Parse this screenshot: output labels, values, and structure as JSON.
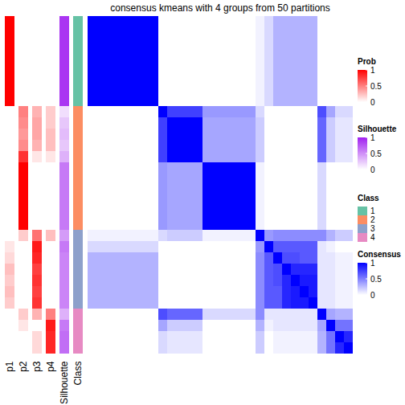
{
  "chart_data": {
    "type": "heatmap",
    "title": "consensus kmeans with 4 groups from 50 partitions",
    "consensus": {
      "title": "Consensus",
      "range": [
        0,
        1
      ],
      "ticks": [
        0,
        0.5,
        1
      ],
      "colors": [
        "#FFFFFF",
        "#0000FF"
      ],
      "cells": [
        [
          1,
          1,
          1,
          1,
          1,
          1,
          1,
          1,
          0,
          0,
          0,
          0,
          0,
          0,
          0,
          0,
          0,
          0,
          0,
          0.05,
          0.15,
          0.3,
          0.3,
          0.3,
          0.3,
          0.3,
          0,
          0,
          0,
          0
        ],
        [
          1,
          1,
          1,
          1,
          1,
          1,
          1,
          1,
          0,
          0,
          0,
          0,
          0,
          0,
          0,
          0,
          0,
          0,
          0,
          0.05,
          0.15,
          0.3,
          0.3,
          0.3,
          0.3,
          0.3,
          0,
          0,
          0,
          0
        ],
        [
          1,
          1,
          1,
          1,
          1,
          1,
          1,
          1,
          0,
          0,
          0,
          0,
          0,
          0,
          0,
          0,
          0,
          0,
          0,
          0.05,
          0.15,
          0.3,
          0.3,
          0.3,
          0.3,
          0.3,
          0,
          0,
          0,
          0
        ],
        [
          1,
          1,
          1,
          1,
          1,
          1,
          1,
          1,
          0,
          0,
          0,
          0,
          0,
          0,
          0,
          0,
          0,
          0,
          0,
          0.05,
          0.15,
          0.3,
          0.3,
          0.3,
          0.3,
          0.3,
          0,
          0,
          0,
          0
        ],
        [
          1,
          1,
          1,
          1,
          1,
          1,
          1,
          1,
          0,
          0,
          0,
          0,
          0,
          0,
          0,
          0,
          0,
          0,
          0,
          0.05,
          0.15,
          0.3,
          0.3,
          0.3,
          0.3,
          0.3,
          0,
          0,
          0,
          0
        ],
        [
          1,
          1,
          1,
          1,
          1,
          1,
          1,
          1,
          0,
          0,
          0,
          0,
          0,
          0,
          0,
          0,
          0,
          0,
          0,
          0.05,
          0.15,
          0.3,
          0.3,
          0.3,
          0.3,
          0.3,
          0,
          0,
          0,
          0
        ],
        [
          1,
          1,
          1,
          1,
          1,
          1,
          1,
          1,
          0,
          0,
          0,
          0,
          0,
          0,
          0,
          0,
          0,
          0,
          0,
          0.05,
          0.15,
          0.3,
          0.3,
          0.3,
          0.3,
          0.3,
          0,
          0,
          0,
          0
        ],
        [
          1,
          1,
          1,
          1,
          1,
          1,
          1,
          1,
          0,
          0,
          0,
          0,
          0,
          0,
          0,
          0,
          0,
          0,
          0,
          0.05,
          0.15,
          0.3,
          0.3,
          0.3,
          0.3,
          0.3,
          0,
          0,
          0,
          0
        ],
        [
          0,
          0,
          0,
          0,
          0,
          0,
          0,
          0,
          1,
          0.75,
          0.75,
          0.75,
          0.75,
          0.4,
          0.4,
          0.4,
          0.4,
          0.4,
          0.4,
          0.15,
          0,
          0,
          0,
          0,
          0,
          0,
          0.7,
          0.35,
          0.15,
          0.15
        ],
        [
          0,
          0,
          0,
          0,
          0,
          0,
          0,
          0,
          0.75,
          1,
          1,
          1,
          1,
          0.35,
          0.35,
          0.35,
          0.35,
          0.35,
          0.35,
          0.2,
          0,
          0,
          0,
          0,
          0,
          0,
          0.6,
          0.2,
          0.1,
          0.1
        ],
        [
          0,
          0,
          0,
          0,
          0,
          0,
          0,
          0,
          0.75,
          1,
          1,
          1,
          1,
          0.35,
          0.35,
          0.35,
          0.35,
          0.35,
          0.35,
          0.2,
          0,
          0,
          0,
          0,
          0,
          0,
          0.6,
          0.2,
          0.1,
          0.1
        ],
        [
          0,
          0,
          0,
          0,
          0,
          0,
          0,
          0,
          0.75,
          1,
          1,
          1,
          1,
          0.35,
          0.35,
          0.35,
          0.35,
          0.35,
          0.35,
          0.2,
          0,
          0,
          0,
          0,
          0,
          0,
          0.6,
          0.2,
          0.1,
          0.1
        ],
        [
          0,
          0,
          0,
          0,
          0,
          0,
          0,
          0,
          0.75,
          1,
          1,
          1,
          1,
          0.35,
          0.35,
          0.35,
          0.35,
          0.35,
          0.35,
          0.2,
          0,
          0,
          0,
          0,
          0,
          0,
          0.6,
          0.2,
          0.1,
          0.1
        ],
        [
          0,
          0,
          0,
          0,
          0,
          0,
          0,
          0,
          0.4,
          0.35,
          0.35,
          0.35,
          0.35,
          1,
          1,
          1,
          1,
          1,
          1,
          0.05,
          0,
          0,
          0,
          0,
          0,
          0,
          0.15,
          0,
          0,
          0
        ],
        [
          0,
          0,
          0,
          0,
          0,
          0,
          0,
          0,
          0.4,
          0.35,
          0.35,
          0.35,
          0.35,
          1,
          1,
          1,
          1,
          1,
          1,
          0.05,
          0,
          0,
          0,
          0,
          0,
          0,
          0.15,
          0,
          0,
          0
        ],
        [
          0,
          0,
          0,
          0,
          0,
          0,
          0,
          0,
          0.4,
          0.35,
          0.35,
          0.35,
          0.35,
          1,
          1,
          1,
          1,
          1,
          1,
          0.05,
          0,
          0,
          0,
          0,
          0,
          0,
          0.15,
          0,
          0,
          0
        ],
        [
          0,
          0,
          0,
          0,
          0,
          0,
          0,
          0,
          0.4,
          0.35,
          0.35,
          0.35,
          0.35,
          1,
          1,
          1,
          1,
          1,
          1,
          0.05,
          0,
          0,
          0,
          0,
          0,
          0,
          0.15,
          0,
          0,
          0
        ],
        [
          0,
          0,
          0,
          0,
          0,
          0,
          0,
          0,
          0.4,
          0.35,
          0.35,
          0.35,
          0.35,
          1,
          1,
          1,
          1,
          1,
          1,
          0.05,
          0,
          0,
          0,
          0,
          0,
          0,
          0.15,
          0,
          0,
          0
        ],
        [
          0,
          0,
          0,
          0,
          0,
          0,
          0,
          0,
          0.4,
          0.35,
          0.35,
          0.35,
          0.35,
          1,
          1,
          1,
          1,
          1,
          1,
          0.05,
          0,
          0,
          0,
          0,
          0,
          0,
          0.15,
          0,
          0,
          0
        ],
        [
          0.05,
          0.05,
          0.05,
          0.05,
          0.05,
          0.05,
          0.05,
          0.05,
          0.15,
          0.2,
          0.2,
          0.2,
          0.2,
          0.05,
          0.05,
          0.05,
          0.05,
          0.05,
          0.05,
          1,
          0.4,
          0.45,
          0.45,
          0.45,
          0.45,
          0.45,
          0.45,
          0.3,
          0.2,
          0.2
        ],
        [
          0.15,
          0.15,
          0.15,
          0.15,
          0.15,
          0.15,
          0.15,
          0.15,
          0,
          0,
          0,
          0,
          0,
          0,
          0,
          0,
          0,
          0,
          0,
          0.4,
          1,
          0.65,
          0.65,
          0.65,
          0.65,
          0.65,
          0.1,
          0.05,
          0,
          0
        ],
        [
          0.3,
          0.3,
          0.3,
          0.3,
          0.3,
          0.3,
          0.3,
          0.3,
          0,
          0,
          0,
          0,
          0,
          0,
          0,
          0,
          0,
          0,
          0,
          0.45,
          0.65,
          1,
          0.7,
          0.7,
          0.65,
          0.65,
          0.1,
          0.1,
          0.05,
          0.05
        ],
        [
          0.3,
          0.3,
          0.3,
          0.3,
          0.3,
          0.3,
          0.3,
          0.3,
          0,
          0,
          0,
          0,
          0,
          0,
          0,
          0,
          0,
          0,
          0,
          0.45,
          0.65,
          0.7,
          1,
          0.85,
          0.85,
          0.85,
          0.1,
          0.1,
          0.05,
          0.05
        ],
        [
          0.3,
          0.3,
          0.3,
          0.3,
          0.3,
          0.3,
          0.3,
          0.3,
          0,
          0,
          0,
          0,
          0,
          0,
          0,
          0,
          0,
          0,
          0,
          0.45,
          0.65,
          0.7,
          0.85,
          1,
          0.9,
          0.9,
          0.1,
          0.1,
          0.05,
          0.05
        ],
        [
          0.3,
          0.3,
          0.3,
          0.3,
          0.3,
          0.3,
          0.3,
          0.3,
          0,
          0,
          0,
          0,
          0,
          0,
          0,
          0,
          0,
          0,
          0,
          0.45,
          0.65,
          0.65,
          0.85,
          0.9,
          1,
          0.9,
          0.1,
          0.1,
          0.05,
          0.05
        ],
        [
          0.3,
          0.3,
          0.3,
          0.3,
          0.3,
          0.3,
          0.3,
          0.3,
          0,
          0,
          0,
          0,
          0,
          0,
          0,
          0,
          0,
          0,
          0,
          0.45,
          0.65,
          0.65,
          0.85,
          0.9,
          0.9,
          1,
          0.1,
          0.1,
          0.05,
          0.05
        ],
        [
          0,
          0,
          0,
          0,
          0,
          0,
          0,
          0,
          0.7,
          0.6,
          0.6,
          0.6,
          0.6,
          0.15,
          0.15,
          0.15,
          0.15,
          0.15,
          0.15,
          0.45,
          0.1,
          0.1,
          0.1,
          0.1,
          0.1,
          0.1,
          1,
          0.35,
          0.3,
          0.3
        ],
        [
          0,
          0,
          0,
          0,
          0,
          0,
          0,
          0,
          0.35,
          0.2,
          0.2,
          0.2,
          0.2,
          0,
          0,
          0,
          0,
          0,
          0,
          0.3,
          0.05,
          0.1,
          0.1,
          0.1,
          0.1,
          0.1,
          0.35,
          1,
          0.55,
          0.55
        ],
        [
          0,
          0,
          0,
          0,
          0,
          0,
          0,
          0,
          0.15,
          0.1,
          0.1,
          0.1,
          0.1,
          0,
          0,
          0,
          0,
          0,
          0,
          0.2,
          0,
          0.05,
          0.05,
          0.05,
          0.05,
          0.05,
          0.3,
          0.55,
          1,
          0.85
        ],
        [
          0,
          0,
          0,
          0,
          0,
          0,
          0,
          0,
          0.15,
          0.1,
          0.1,
          0.1,
          0.1,
          0,
          0,
          0,
          0,
          0,
          0,
          0.2,
          0,
          0.05,
          0.05,
          0.05,
          0.05,
          0.05,
          0.3,
          0.55,
          0.85,
          1
        ]
      ]
    },
    "annotations": [
      {
        "name": "p1",
        "values": [
          1,
          1,
          1,
          1,
          1,
          1,
          1,
          1,
          0,
          0,
          0,
          0,
          0,
          0,
          0,
          0,
          0,
          0,
          0,
          0,
          0.1,
          0.15,
          0.25,
          0.2,
          0.25,
          0.2,
          0,
          0,
          0,
          0
        ]
      },
      {
        "name": "p2",
        "values": [
          0,
          0,
          0,
          0,
          0,
          0,
          0,
          0,
          0.5,
          0.45,
          0.4,
          0.45,
          0.8,
          1,
          1,
          1,
          1,
          1,
          1,
          0.2,
          0,
          0,
          0,
          0,
          0,
          0,
          0.2,
          0.1,
          0,
          0
        ]
      },
      {
        "name": "p3",
        "values": [
          0,
          0,
          0,
          0,
          0,
          0,
          0,
          0,
          0.3,
          0.35,
          0.35,
          0.3,
          0.1,
          0,
          0,
          0,
          0,
          0,
          0,
          0.55,
          0.9,
          0.85,
          0.75,
          0.8,
          0.75,
          0.8,
          0.3,
          0,
          0.15,
          0.15
        ]
      },
      {
        "name": "p4",
        "values": [
          0,
          0,
          0,
          0,
          0,
          0,
          0,
          0,
          0.2,
          0.2,
          0.25,
          0.25,
          0.1,
          0,
          0,
          0,
          0,
          0,
          0,
          0.25,
          0,
          0,
          0,
          0,
          0,
          0,
          0.5,
          0.9,
          0.85,
          0.85
        ]
      },
      {
        "name": "Silhouette",
        "values": [
          0.9,
          0.9,
          0.9,
          0.9,
          0.9,
          0.9,
          0.9,
          0.9,
          0.15,
          0.25,
          0.3,
          0.25,
          0.35,
          0.6,
          0.6,
          0.6,
          0.6,
          0.6,
          0.6,
          0.45,
          0.6,
          0.55,
          0.55,
          0.55,
          0.55,
          0.55,
          0.35,
          0.6,
          0.65,
          0.65
        ]
      },
      {
        "name": "Class",
        "values": [
          1,
          1,
          1,
          1,
          1,
          1,
          1,
          1,
          2,
          2,
          2,
          2,
          2,
          2,
          2,
          2,
          2,
          2,
          2,
          3,
          3,
          3,
          3,
          3,
          3,
          3,
          4,
          4,
          4,
          4
        ]
      }
    ],
    "prob_colorbar": {
      "title": "Prob",
      "range": [
        0,
        1
      ],
      "ticks": [
        0,
        0.5,
        1
      ],
      "colors": [
        "#FFFFFF",
        "#FF0000"
      ]
    },
    "silhouette_colorbar": {
      "title": "Silhouette",
      "range": [
        0,
        1
      ],
      "ticks": [
        0,
        0.5,
        1
      ],
      "colors": [
        "#FFFFFF",
        "#A020F0"
      ]
    },
    "class_legend": {
      "title": "Class",
      "categories": [
        1,
        2,
        3,
        4
      ],
      "colors": [
        "#66C2A5",
        "#FC8D62",
        "#8DA0CB",
        "#E78AC3"
      ]
    }
  }
}
